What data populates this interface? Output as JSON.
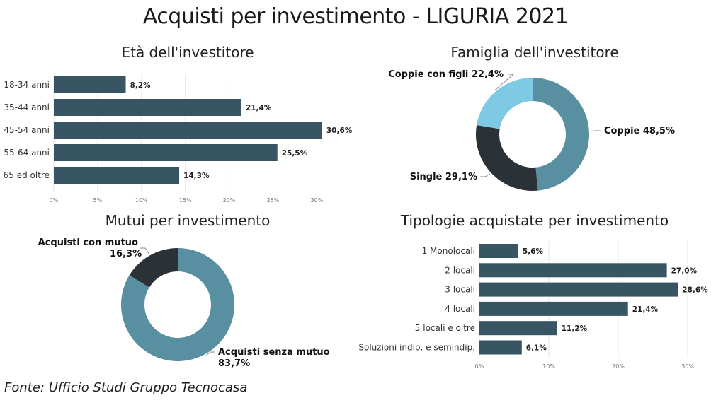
{
  "main_title": "Acquisti per investimento - LIGURIA 2021",
  "footer": "Fonte: Ufficio Studi Gruppo Tecnocasa",
  "colors": {
    "bar": "#375562",
    "ring_main": "#588fa1",
    "ring_dark": "#2a3237",
    "ring_light": "#7ec9e4"
  },
  "chart_data": [
    {
      "type": "bar",
      "title": "Età dell'investitore",
      "categories": [
        "18-34 anni",
        "35-44 anni",
        "45-54 anni",
        "55-64 anni",
        "65 ed oltre"
      ],
      "values": [
        8.2,
        21.4,
        30.6,
        25.5,
        14.3
      ],
      "value_labels": [
        "8,2%",
        "21,4%",
        "30,6%",
        "25,5%",
        "14,3%"
      ],
      "xlim": [
        0,
        31.5
      ],
      "ticks": [
        0,
        5,
        10,
        15,
        20,
        25,
        30
      ],
      "tick_labels": [
        "0%",
        "5%",
        "10%",
        "15%",
        "20%",
        "25%",
        "30%"
      ],
      "orientation": "horizontal",
      "grid": true
    },
    {
      "type": "pie",
      "title": "Famiglia dell'investitore",
      "labels": [
        "Coppie",
        "Single",
        "Coppie con figli"
      ],
      "values": [
        48.5,
        29.1,
        22.4
      ],
      "value_labels": [
        "48,5%",
        "29,1%",
        "22,4%"
      ],
      "donut": true
    },
    {
      "type": "pie",
      "title": "Mutui per investimento",
      "labels": [
        "Acquisti senza mutuo",
        "Acquisti con mutuo"
      ],
      "values": [
        83.7,
        16.3
      ],
      "value_labels": [
        "83,7%",
        "16,3%"
      ],
      "donut": true
    },
    {
      "type": "bar",
      "title": "Tipologie acquistate per investimento",
      "categories": [
        "1 Monolocali",
        "2 locali",
        "3 locali",
        "4 locali",
        "5 locali e oltre",
        "Soluzioni indip. e semindip."
      ],
      "values": [
        5.6,
        27.0,
        28.6,
        21.4,
        11.2,
        6.1
      ],
      "value_labels": [
        "5,6%",
        "27,0%",
        "28,6%",
        "21,4%",
        "11,2%",
        "6,1%"
      ],
      "xlim": [
        0,
        30
      ],
      "ticks": [
        0,
        10,
        20,
        30
      ],
      "tick_labels": [
        "0%",
        "10%",
        "20%",
        "30%"
      ],
      "orientation": "horizontal",
      "grid": true
    }
  ]
}
